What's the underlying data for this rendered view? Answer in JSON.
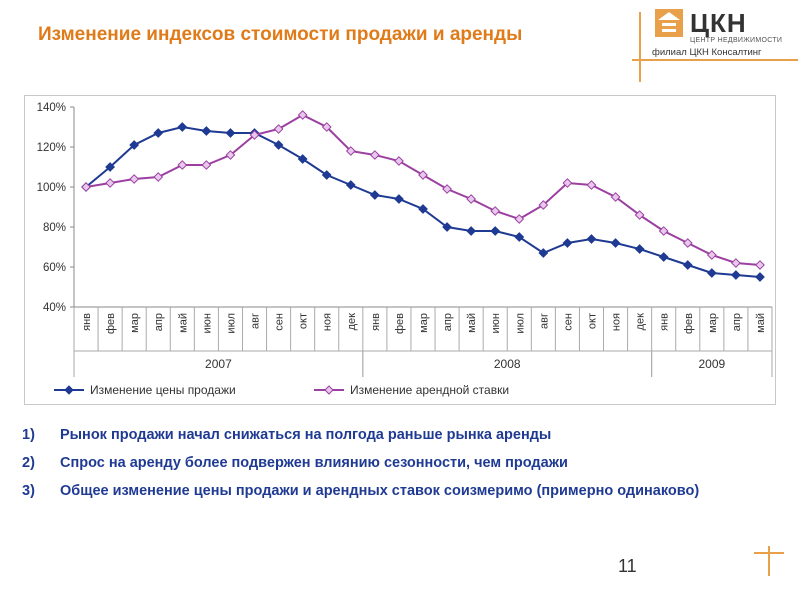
{
  "header": {
    "title": "Изменение индексов стоимости продажи и аренды"
  },
  "logo": {
    "name": "ЦКН",
    "subtitle1": "ЦЕНТР НЕДВИЖИМОСТИ",
    "subtitle2": "филиал ЦКН Консалтинг",
    "accent": "#e8a04a"
  },
  "chart_data": {
    "type": "line",
    "title": "",
    "ylim": [
      40,
      140
    ],
    "y_ticks": [
      "40%",
      "60%",
      "80%",
      "100%",
      "120%",
      "140%"
    ],
    "grid": false,
    "legend": "bottom",
    "categories": [
      "янв",
      "фев",
      "мар",
      "апр",
      "май",
      "июн",
      "июл",
      "авг",
      "сен",
      "окт",
      "ноя",
      "дек",
      "янв",
      "фев",
      "мар",
      "апр",
      "май",
      "июн",
      "июл",
      "авг",
      "сен",
      "окт",
      "ноя",
      "дек",
      "янв",
      "фев",
      "мар",
      "апр",
      "май"
    ],
    "years": [
      {
        "label": "2007",
        "start": 0,
        "end": 12
      },
      {
        "label": "2008",
        "start": 12,
        "end": 24
      },
      {
        "label": "2009",
        "start": 24,
        "end": 29
      }
    ],
    "series": [
      {
        "name": "Изменение цены продажи",
        "color": "#1f3a93",
        "marker": "diamond",
        "values": [
          100,
          110,
          121,
          127,
          130,
          128,
          127,
          127,
          121,
          114,
          106,
          101,
          96,
          94,
          89,
          80,
          78,
          78,
          75,
          67,
          72,
          74,
          72,
          69,
          65,
          61,
          57,
          56,
          55
        ]
      },
      {
        "name": "Изменение  арендной ставки",
        "color": "#9b3fa0",
        "marker": "diamond",
        "values": [
          100,
          102,
          104,
          105,
          111,
          111,
          116,
          126,
          129,
          136,
          130,
          118,
          116,
          113,
          106,
          99,
          94,
          88,
          84,
          91,
          102,
          101,
          95,
          86,
          78,
          72,
          66,
          62,
          61
        ]
      }
    ]
  },
  "notes": [
    {
      "num": "1)",
      "text": "Рынок продажи начал снижаться на полгода раньше рынка аренды"
    },
    {
      "num": "2)",
      "text": "Спрос на аренду более подвержен влиянию сезонности, чем продажи"
    },
    {
      "num": "3)",
      "text": "Общее изменение цены продажи и арендных ставок соизмеримо (примерно одинаково)"
    }
  ],
  "page": {
    "number": "11"
  }
}
